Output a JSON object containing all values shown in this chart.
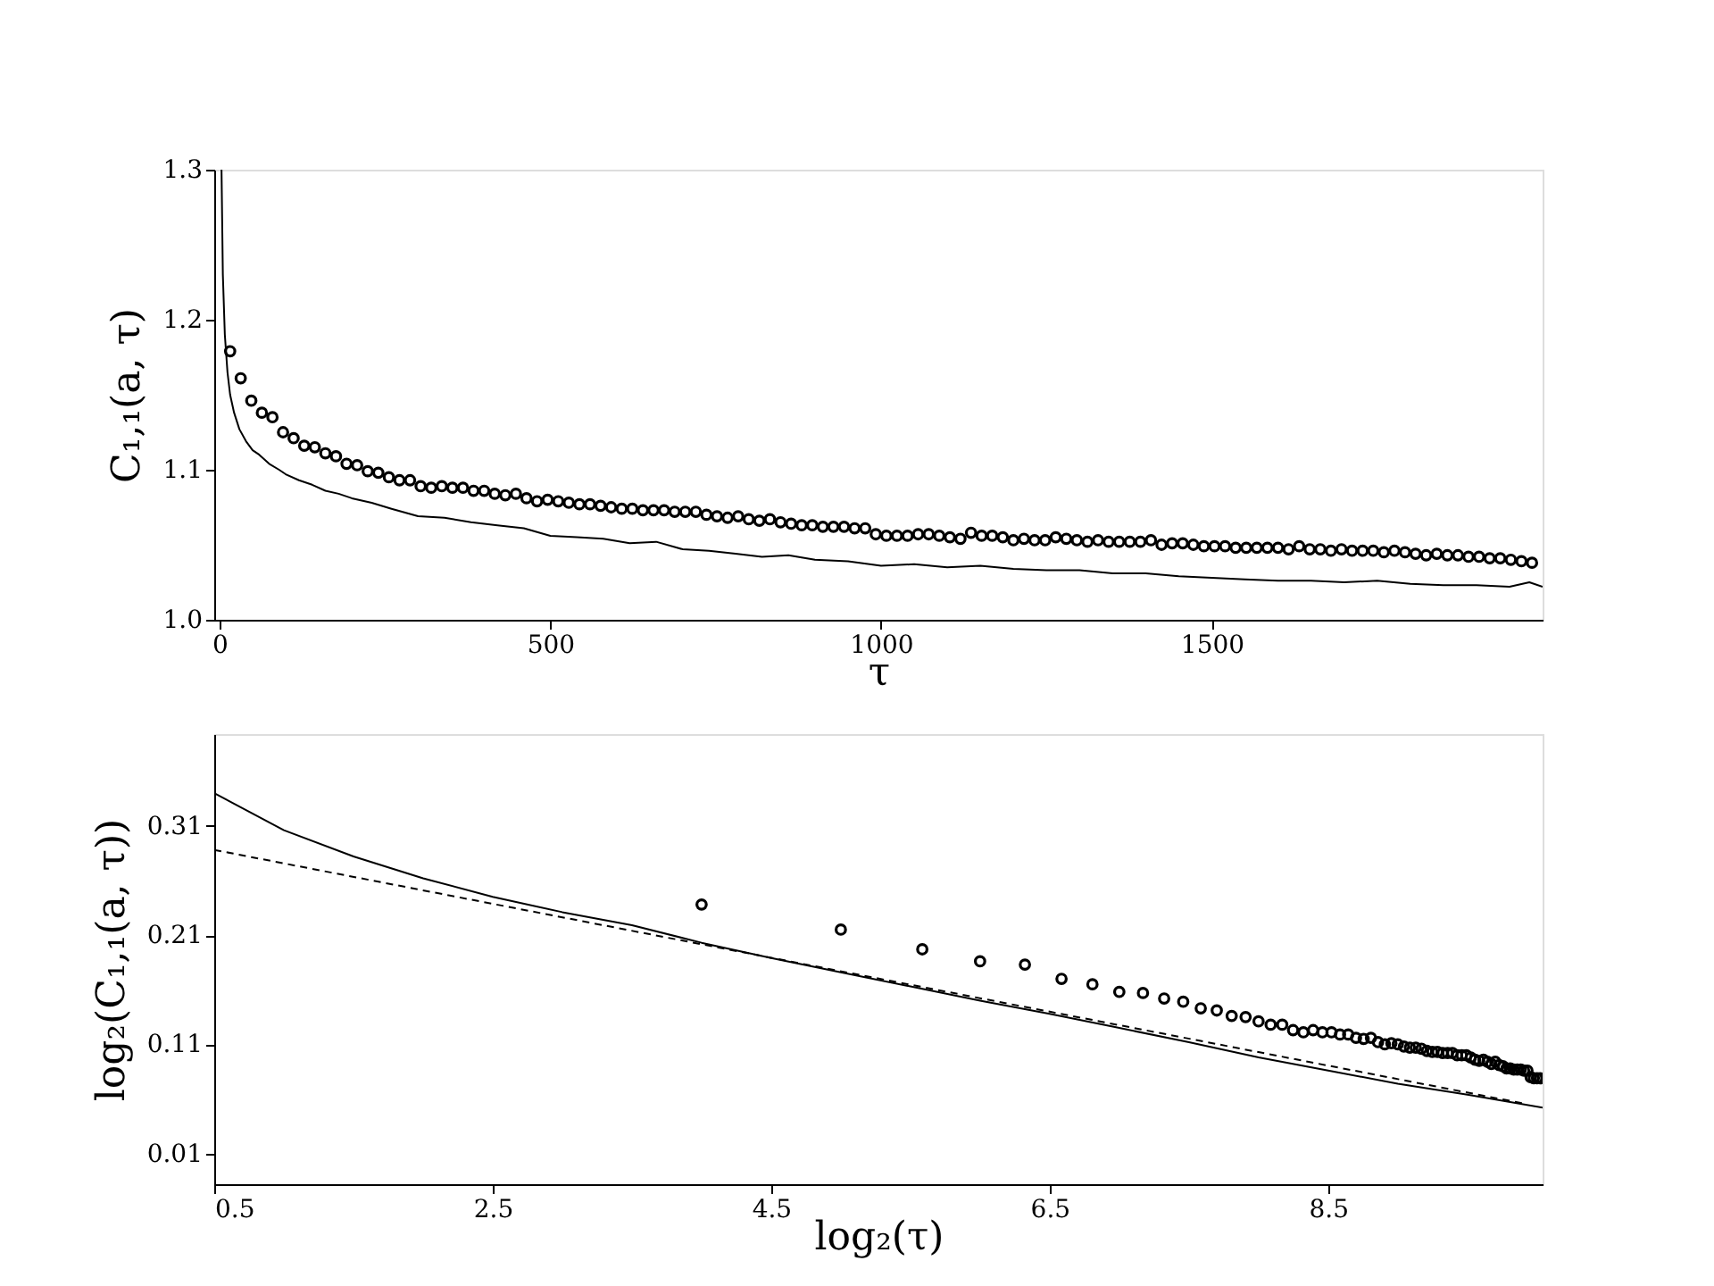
{
  "chart_data": [
    {
      "type": "line",
      "xlabel": "τ",
      "ylabel": "C₁,₁(a, τ)",
      "xlim": [
        -8,
        2000
      ],
      "ylim": [
        1.0,
        1.3
      ],
      "xticks": [
        0,
        500,
        1000,
        1500
      ],
      "yticks": [
        {
          "value": 1.0,
          "label": "1.0"
        },
        1.1,
        1.2,
        1.3
      ],
      "grid": false,
      "series": [
        {
          "color": "#000000",
          "line_style": "solid",
          "marker": "none",
          "x": [
            3,
            5,
            8,
            12,
            16,
            22,
            30,
            40,
            50,
            60,
            75,
            90,
            100,
            120,
            140,
            160,
            180,
            200,
            230,
            260,
            300,
            340,
            380,
            420,
            460,
            500,
            540,
            580,
            620,
            660,
            700,
            740,
            780,
            820,
            860,
            900,
            950,
            1000,
            1050,
            1100,
            1150,
            1200,
            1250,
            1300,
            1350,
            1400,
            1450,
            1500,
            1550,
            1600,
            1650,
            1700,
            1750,
            1800,
            1850,
            1900,
            1950,
            1980,
            2000
          ],
          "values": [
            1.3,
            1.23,
            1.19,
            1.165,
            1.15,
            1.138,
            1.127,
            1.119,
            1.113,
            1.11,
            1.104,
            1.1,
            1.097,
            1.093,
            1.09,
            1.086,
            1.084,
            1.081,
            1.078,
            1.074,
            1.069,
            1.068,
            1.065,
            1.063,
            1.061,
            1.056,
            1.055,
            1.054,
            1.051,
            1.052,
            1.047,
            1.046,
            1.044,
            1.042,
            1.043,
            1.04,
            1.039,
            1.036,
            1.037,
            1.035,
            1.036,
            1.034,
            1.033,
            1.033,
            1.031,
            1.031,
            1.029,
            1.028,
            1.027,
            1.026,
            1.026,
            1.025,
            1.026,
            1.024,
            1.023,
            1.023,
            1.022,
            1.025,
            1.022
          ]
        },
        {
          "type": "scatter",
          "color": "#000000",
          "marker": "circle",
          "x": [
            16,
            32,
            48,
            64,
            80,
            96,
            112,
            128,
            144,
            160,
            176,
            192,
            208,
            224,
            240,
            256,
            272,
            288,
            304,
            320,
            336,
            352,
            368,
            384,
            400,
            416,
            432,
            448,
            464,
            480,
            496,
            512,
            528,
            544,
            560,
            576,
            592,
            608,
            624,
            640,
            656,
            672,
            688,
            704,
            720,
            736,
            752,
            768,
            784,
            800,
            816,
            832,
            848,
            864,
            880,
            896,
            912,
            928,
            944,
            960,
            976,
            992,
            1008,
            1024,
            1040,
            1056,
            1072,
            1088,
            1104,
            1120,
            1136,
            1152,
            1168,
            1184,
            1200,
            1216,
            1232,
            1248,
            1264,
            1280,
            1296,
            1312,
            1328,
            1344,
            1360,
            1376,
            1392,
            1408,
            1424,
            1440,
            1456,
            1472,
            1488,
            1504,
            1520,
            1536,
            1552,
            1568,
            1584,
            1600,
            1616,
            1632,
            1648,
            1664,
            1680,
            1696,
            1712,
            1728,
            1744,
            1760,
            1776,
            1792,
            1808,
            1824,
            1840,
            1856,
            1872,
            1888,
            1904,
            1920,
            1936,
            1952,
            1968,
            1984
          ],
          "values": [
            1.179,
            1.161,
            1.146,
            1.138,
            1.135,
            1.125,
            1.121,
            1.116,
            1.115,
            1.111,
            1.109,
            1.104,
            1.103,
            1.099,
            1.098,
            1.095,
            1.093,
            1.093,
            1.089,
            1.088,
            1.089,
            1.088,
            1.088,
            1.086,
            1.086,
            1.084,
            1.083,
            1.084,
            1.081,
            1.079,
            1.08,
            1.079,
            1.078,
            1.077,
            1.077,
            1.076,
            1.075,
            1.074,
            1.074,
            1.073,
            1.073,
            1.073,
            1.072,
            1.072,
            1.072,
            1.07,
            1.069,
            1.068,
            1.069,
            1.067,
            1.066,
            1.067,
            1.065,
            1.064,
            1.063,
            1.063,
            1.062,
            1.062,
            1.062,
            1.061,
            1.061,
            1.057,
            1.056,
            1.056,
            1.056,
            1.057,
            1.057,
            1.056,
            1.055,
            1.054,
            1.058,
            1.056,
            1.056,
            1.055,
            1.053,
            1.054,
            1.053,
            1.053,
            1.055,
            1.054,
            1.053,
            1.052,
            1.053,
            1.052,
            1.052,
            1.052,
            1.052,
            1.053,
            1.05,
            1.051,
            1.051,
            1.05,
            1.049,
            1.049,
            1.049,
            1.048,
            1.048,
            1.048,
            1.048,
            1.048,
            1.047,
            1.049,
            1.047,
            1.047,
            1.046,
            1.047,
            1.046,
            1.046,
            1.046,
            1.045,
            1.046,
            1.045,
            1.044,
            1.043,
            1.044,
            1.043,
            1.043,
            1.042,
            1.042,
            1.041,
            1.041,
            1.04,
            1.039,
            1.038
          ]
        }
      ]
    },
    {
      "type": "line",
      "xlabel": "log₂(τ)",
      "ylabel": "log₂(C₁,₁(a, τ))",
      "xlim": [
        0.5,
        10.04
      ],
      "ylim": [
        -0.018,
        0.394
      ],
      "xticks": [
        0.5,
        2.5,
        4.5,
        6.5,
        8.5
      ],
      "yticks": [
        0.01,
        0.11,
        0.21,
        0.31
      ],
      "grid": false,
      "series": [
        {
          "color": "#000000",
          "line_style": "dashed",
          "marker": "none",
          "x": [
            0.5,
            9.9
          ],
          "values": [
            0.288,
            0.056
          ]
        },
        {
          "color": "#000000",
          "line_style": "solid",
          "marker": "none",
          "x": [
            0.5,
            1.0,
            1.5,
            2.0,
            2.5,
            3.0,
            3.5,
            4.0,
            4.5,
            5.0,
            5.5,
            6.0,
            6.5,
            7.0,
            7.5,
            8.0,
            8.5,
            9.0,
            9.5,
            10.04
          ],
          "values": [
            0.34,
            0.306,
            0.282,
            0.262,
            0.245,
            0.231,
            0.219,
            0.203,
            0.189,
            0.176,
            0.163,
            0.15,
            0.138,
            0.125,
            0.112,
            0.098,
            0.086,
            0.074,
            0.064,
            0.052
          ]
        },
        {
          "type": "scatter",
          "color": "#000000",
          "marker": "circle",
          "x": [
            4.0,
            5.0,
            5.585,
            6.0,
            6.322,
            6.585,
            6.807,
            7.0,
            7.17,
            7.322,
            7.459,
            7.585,
            7.7,
            7.807,
            7.907,
            8.0,
            8.087,
            8.17,
            8.248,
            8.322,
            8.392,
            8.459,
            8.524,
            8.585,
            8.644,
            8.7,
            8.755,
            8.807,
            8.858,
            8.907,
            8.954,
            9.0,
            9.044,
            9.087,
            9.129,
            9.17,
            9.209,
            9.248,
            9.285,
            9.322,
            9.358,
            9.392,
            9.426,
            9.459,
            9.492,
            9.524,
            9.555,
            9.585,
            9.615,
            9.644,
            9.672,
            9.7,
            9.728,
            9.755,
            9.781,
            9.807,
            9.833,
            9.858,
            9.883,
            9.907,
            9.931,
            9.954,
            9.977,
            10.0,
            10.022
          ],
          "values": [
            0.238,
            0.215,
            0.197,
            0.186,
            0.183,
            0.17,
            0.165,
            0.158,
            0.157,
            0.152,
            0.149,
            0.143,
            0.141,
            0.136,
            0.135,
            0.131,
            0.128,
            0.128,
            0.123,
            0.121,
            0.123,
            0.121,
            0.121,
            0.119,
            0.119,
            0.116,
            0.115,
            0.116,
            0.112,
            0.11,
            0.111,
            0.11,
            0.108,
            0.107,
            0.107,
            0.106,
            0.104,
            0.103,
            0.103,
            0.102,
            0.102,
            0.102,
            0.1,
            0.1,
            0.1,
            0.098,
            0.096,
            0.095,
            0.096,
            0.094,
            0.092,
            0.094,
            0.091,
            0.09,
            0.088,
            0.088,
            0.087,
            0.087,
            0.087,
            0.086,
            0.086,
            0.08,
            0.079,
            0.079,
            0.079
          ]
        }
      ]
    }
  ]
}
